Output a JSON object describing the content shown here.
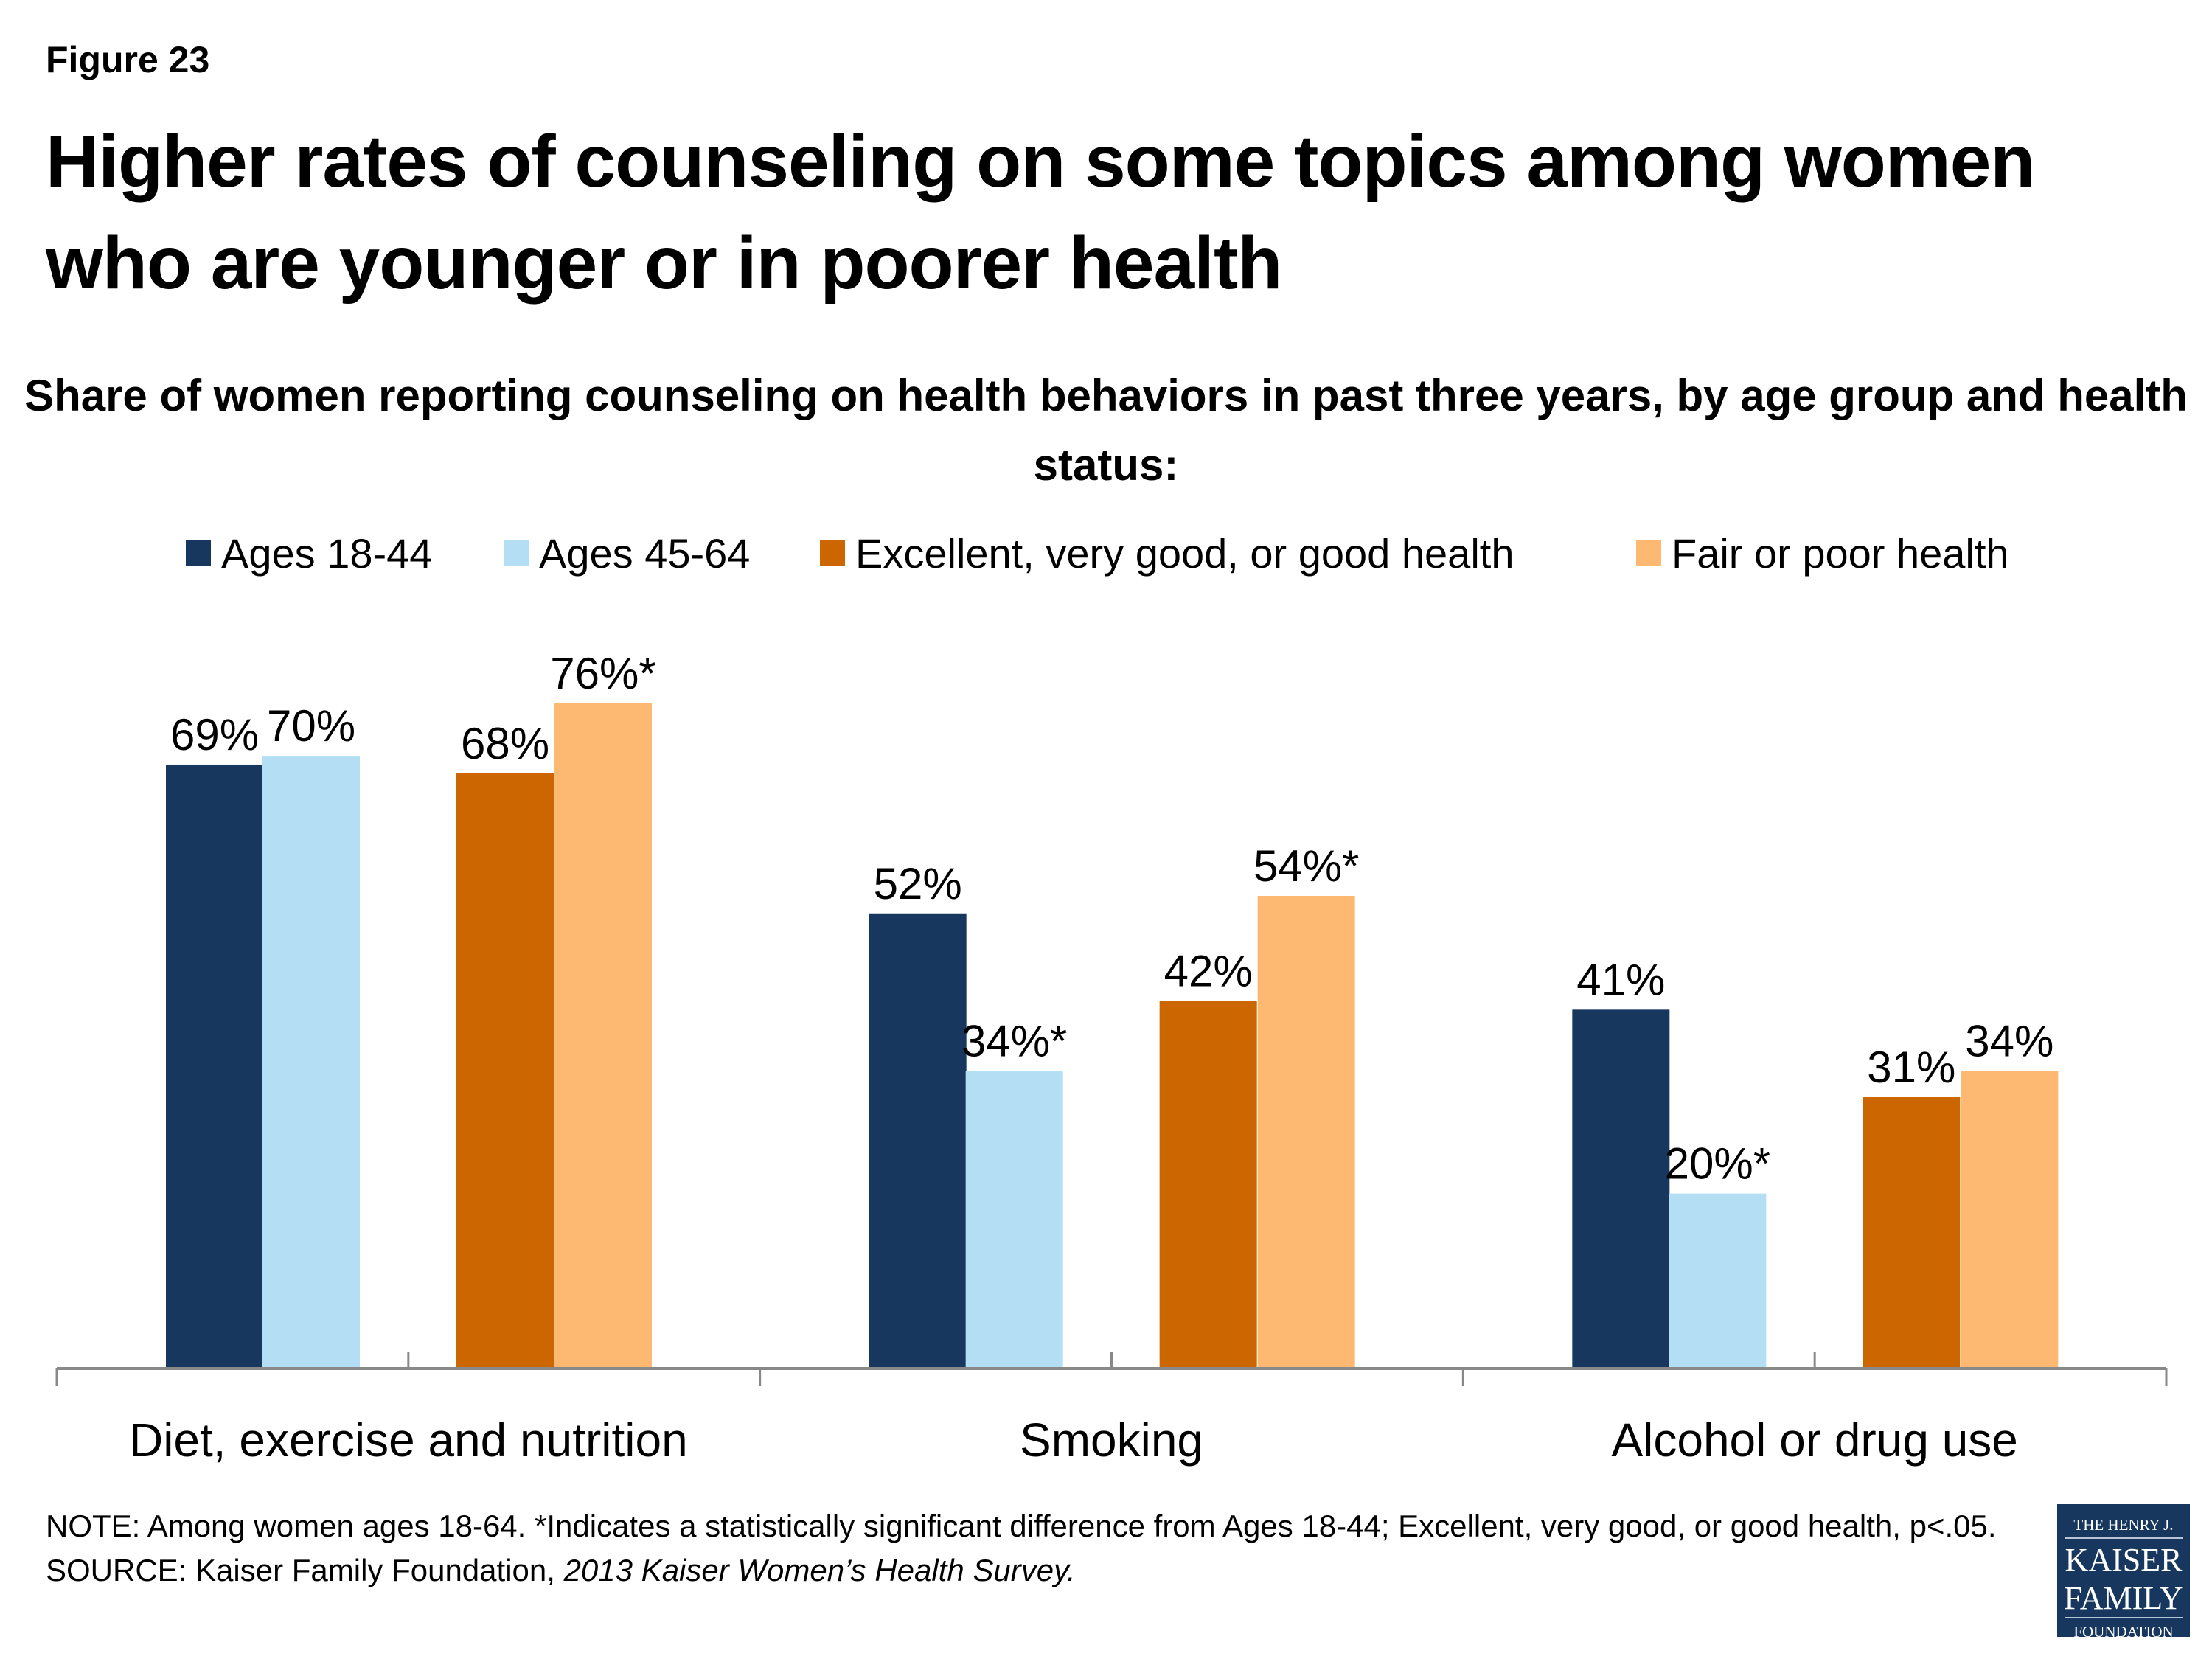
{
  "figure_label": "Figure 23",
  "title": "Higher rates of counseling on some topics among women who are younger or in poorer health",
  "note": {
    "line1": "NOTE: Among women ages 18-64. *Indicates a statistically significant difference from Ages 18-44; Excellent, very good, or good health, p<.05.",
    "source_prefix": "SOURCE: Kaiser Family Foundation, ",
    "source_italic": "2013 Kaiser Women’s Health Survey."
  },
  "logo": {
    "line1": "THE HENRY J.",
    "line2": "KAISER",
    "line3": "FAMILY",
    "line4": "FOUNDATION"
  },
  "chart_data": {
    "type": "bar",
    "title": "Share of women reporting counseling on health behaviors in past three years, by age group and health status:",
    "categories": [
      "Diet, exercise and nutrition",
      "Smoking",
      "Alcohol or drug use"
    ],
    "series": [
      {
        "name": "Ages 18-44",
        "color": "#17375E",
        "values": [
          69,
          52,
          41
        ],
        "labels": [
          "69%",
          "52%",
          "41%"
        ]
      },
      {
        "name": "Ages 45-64",
        "color": "#B3DEF3",
        "values": [
          70,
          34,
          20
        ],
        "labels": [
          "70%",
          "34%*",
          "20%*"
        ]
      },
      {
        "name": "Excellent, very good, or good health",
        "color": "#CC6600",
        "values": [
          68,
          42,
          31
        ],
        "labels": [
          "68%",
          "42%",
          "31%"
        ]
      },
      {
        "name": "Fair or poor health",
        "color": "#FDB871",
        "values": [
          76,
          54,
          34
        ],
        "labels": [
          "76%*",
          "54%*",
          "34%"
        ]
      }
    ],
    "ylim": [
      0,
      100
    ],
    "grid": false,
    "legend": "top",
    "xlabel": "",
    "ylabel": ""
  }
}
